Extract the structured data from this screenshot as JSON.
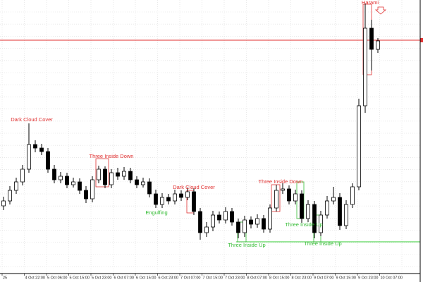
{
  "chart_data": {
    "type": "candlestick",
    "ylim": [
      0,
      400
    ],
    "grid": true,
    "x_labels": [
      "25",
      "4 Oct 22:00",
      "5 Oct 06:00",
      "5 Oct 15:00",
      "5 Oct 23:00",
      "6 Oct 07:00",
      "6 Oct 15:00",
      "6 Oct 23:00",
      "7 Oct 07:00",
      "7 Oct 15:00",
      "7 Oct 23:00",
      "8 Oct 07:00",
      "8 Oct 15:00",
      "8 Oct 23:00",
      "9 Oct 07:00",
      "9 Oct 15:00",
      "9 Oct 23:00",
      "10 Oct 07:00"
    ],
    "up_color": "#ffffff",
    "down_color": "#000000",
    "outline_color": "#000000",
    "open": [
      108,
      115,
      130,
      142,
      160,
      195,
      190,
      185,
      160,
      145,
      150,
      138,
      142,
      130,
      118,
      145,
      160,
      138,
      155,
      150,
      157,
      145,
      138,
      142,
      125,
      110,
      120,
      115,
      125,
      120,
      128,
      100,
      70,
      78,
      95,
      88,
      100,
      85,
      70,
      88,
      82,
      90,
      75,
      105,
      130,
      132,
      115,
      125,
      90,
      110,
      70,
      95,
      115,
      120,
      80,
      110,
      135,
      250,
      360,
      330
    ],
    "high": [
      121,
      136,
      148,
      166,
      225,
      201,
      196,
      190,
      166,
      156,
      155,
      148,
      147,
      136,
      150,
      165,
      164,
      160,
      162,
      163,
      162,
      150,
      148,
      147,
      131,
      126,
      125,
      131,
      130,
      134,
      133,
      105,
      85,
      101,
      100,
      106,
      105,
      90,
      94,
      93,
      96,
      95,
      110,
      138,
      140,
      137,
      131,
      130,
      116,
      115,
      101,
      122,
      135,
      126,
      116,
      140,
      260,
      395,
      372,
      346
    ],
    "low": [
      102,
      110,
      125,
      137,
      155,
      184,
      180,
      155,
      140,
      140,
      133,
      134,
      125,
      112,
      113,
      140,
      133,
      133,
      145,
      145,
      140,
      133,
      134,
      120,
      105,
      105,
      110,
      110,
      115,
      116,
      95,
      60,
      64,
      72,
      83,
      83,
      80,
      62,
      64,
      76,
      77,
      70,
      70,
      100,
      125,
      110,
      110,
      84,
      85,
      62,
      65,
      90,
      110,
      74,
      75,
      105,
      130,
      240,
      300,
      325
    ],
    "close": [
      115,
      130,
      142,
      160,
      195,
      190,
      185,
      160,
      145,
      150,
      138,
      142,
      130,
      118,
      145,
      160,
      138,
      155,
      150,
      157,
      145,
      138,
      142,
      125,
      110,
      120,
      115,
      125,
      120,
      128,
      100,
      70,
      78,
      95,
      88,
      100,
      85,
      70,
      88,
      82,
      90,
      75,
      105,
      130,
      132,
      115,
      125,
      90,
      110,
      70,
      95,
      115,
      120,
      80,
      110,
      135,
      250,
      360,
      330,
      342
    ],
    "levels": [
      {
        "value": 343,
        "color": "#e03030"
      },
      {
        "value": 57,
        "color": "#33cc33"
      }
    ],
    "annotations": [
      {
        "text": "Dark Cloud Cover",
        "color": "#e03030"
      },
      {
        "text": "Three Inside Down",
        "color": "#e03030"
      },
      {
        "text": "Engulfing",
        "color": "#33bb33"
      },
      {
        "text": "Dark Cloud Cover",
        "color": "#e03030"
      },
      {
        "text": "Three Inside Up",
        "color": "#33bb33"
      },
      {
        "text": "Three Inside Down",
        "color": "#e03030"
      },
      {
        "text": "Three Inside Up",
        "color": "#33bb33"
      },
      {
        "text": "Three Inside Up",
        "color": "#33bb33"
      },
      {
        "text": "Harami",
        "color": "#e03030"
      }
    ]
  }
}
